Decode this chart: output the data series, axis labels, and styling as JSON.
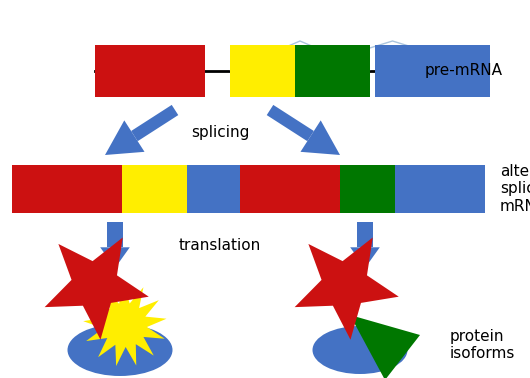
{
  "fig_width": 5.3,
  "fig_height": 3.78,
  "dpi": 100,
  "bg_color": "#ffffff",
  "colors": {
    "red": "#cc1111",
    "yellow": "#ffee00",
    "green": "#007700",
    "blue": "#4472c4",
    "arrow_blue": "#4472c4",
    "intron_outline": "#aac4dd",
    "black": "#000000"
  },
  "labels": {
    "pre_mrna": "pre-mRNA",
    "splicing": "splicing",
    "alt_spliced": "alternatively\nspliced\nmRNAs",
    "translation": "translation",
    "protein_isoforms": "protein\nisoforms"
  },
  "font_size": 10
}
